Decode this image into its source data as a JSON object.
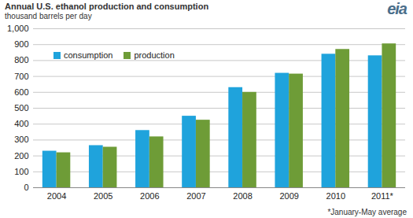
{
  "chart_data": {
    "type": "bar",
    "title": "Annual U.S. ethanol production and consumption",
    "subtitle": "thousand barrels per day",
    "logo": "eia",
    "footnote": "*January-May average",
    "categories": [
      "2004",
      "2005",
      "2006",
      "2007",
      "2008",
      "2009",
      "2010",
      "2011*"
    ],
    "series": [
      {
        "name": "consumption",
        "color": "#1fa3dc",
        "values": [
          230,
          265,
          360,
          450,
          630,
          720,
          840,
          830
        ]
      },
      {
        "name": "production",
        "color": "#6e9c37",
        "values": [
          220,
          255,
          320,
          425,
          600,
          715,
          870,
          905
        ]
      }
    ],
    "ylim": [
      0,
      1000
    ],
    "yticks": [
      0,
      100,
      200,
      300,
      400,
      500,
      600,
      700,
      800,
      900,
      {
        "value": 1000,
        "label": "1,000"
      }
    ],
    "grid": true,
    "legend": "top-left"
  }
}
